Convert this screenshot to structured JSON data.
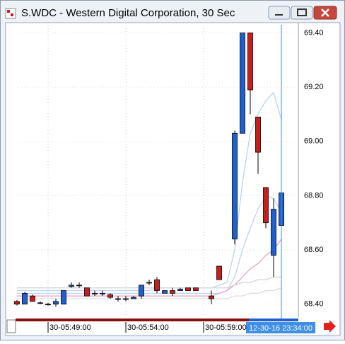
{
  "window_title": "S.WDC - Western Digital Corporation, 30 Sec",
  "chart_data": {
    "type": "candlestick",
    "categories": [
      null,
      null,
      null,
      null,
      "30-05:49:00",
      null,
      null,
      null,
      null,
      null,
      null,
      null,
      null,
      null,
      "30-05:54:00",
      null,
      null,
      null,
      null,
      null,
      null,
      null,
      null,
      null,
      "30-05:59:00",
      null,
      null,
      null,
      null,
      null,
      null,
      null,
      null,
      null,
      null
    ],
    "open": [
      68.41,
      68.4,
      68.43,
      68.405,
      68.4,
      68.4,
      68.4,
      68.465,
      68.47,
      68.46,
      68.44,
      68.44,
      68.435,
      68.42,
      68.42,
      68.42,
      68.43,
      68.48,
      68.49,
      68.44,
      68.45,
      68.45,
      68.46,
      68.46,
      null,
      68.43,
      68.54,
      null,
      68.64,
      69.03,
      69.4,
      69.09,
      68.83,
      68.58,
      68.69
    ],
    "high": [
      68.415,
      68.445,
      68.435,
      68.41,
      68.405,
      68.42,
      68.45,
      68.48,
      68.48,
      68.46,
      68.45,
      68.45,
      68.44,
      68.43,
      68.43,
      68.43,
      68.47,
      68.49,
      68.5,
      68.45,
      68.46,
      68.46,
      68.46,
      68.46,
      null,
      68.45,
      68.54,
      null,
      69.04,
      69.4,
      69.4,
      69.09,
      68.83,
      68.79,
      69.08
    ],
    "low": [
      68.395,
      68.4,
      68.41,
      68.4,
      68.395,
      68.39,
      68.4,
      68.46,
      68.46,
      68.43,
      68.43,
      68.43,
      68.42,
      68.41,
      68.41,
      68.42,
      68.42,
      68.47,
      68.44,
      68.44,
      68.43,
      68.45,
      68.45,
      68.45,
      null,
      68.4,
      68.49,
      null,
      68.62,
      69.03,
      69.1,
      68.88,
      68.68,
      68.5,
      68.49
    ],
    "close": [
      68.4,
      68.44,
      68.41,
      68.405,
      68.4,
      68.41,
      68.45,
      68.47,
      68.47,
      68.43,
      68.44,
      68.44,
      68.425,
      68.42,
      68.42,
      68.425,
      68.47,
      68.48,
      68.45,
      68.45,
      68.44,
      68.455,
      68.45,
      68.45,
      null,
      68.42,
      68.49,
      null,
      69.03,
      69.4,
      69.19,
      68.96,
      68.7,
      68.75,
      68.81
    ],
    "up_color": "#1f5fcf",
    "down_color": "#c81e1e",
    "series": [
      {
        "color": "#b8d4ee",
        "values": [
          68.45,
          68.45,
          68.45,
          68.45,
          68.45,
          68.45,
          68.45,
          68.45,
          68.45,
          68.45,
          68.45,
          68.45,
          68.45,
          68.45,
          68.45,
          68.45,
          68.45,
          68.45,
          68.46,
          68.46,
          68.46,
          68.46,
          68.46,
          68.46,
          68.46,
          68.46,
          68.47,
          68.48,
          68.6,
          68.85,
          69.03,
          69.1,
          69.15,
          69.18,
          69.08
        ]
      },
      {
        "color": "#b8d4ee",
        "values": [
          68.44,
          68.44,
          68.44,
          68.44,
          68.44,
          68.44,
          68.44,
          68.44,
          68.44,
          68.44,
          68.44,
          68.44,
          68.44,
          68.44,
          68.44,
          68.44,
          68.44,
          68.44,
          68.44,
          68.44,
          68.44,
          68.44,
          68.44,
          68.44,
          68.44,
          68.44,
          68.44,
          68.45,
          68.5,
          68.6,
          68.68,
          68.75,
          68.8,
          68.79,
          68.74
        ]
      },
      {
        "color": "#e6a3c4",
        "values": [
          68.43,
          68.43,
          68.43,
          68.43,
          68.43,
          68.43,
          68.43,
          68.43,
          68.43,
          68.43,
          68.43,
          68.43,
          68.43,
          68.43,
          68.43,
          68.43,
          68.43,
          68.43,
          68.43,
          68.43,
          68.43,
          68.43,
          68.43,
          68.43,
          68.43,
          68.43,
          68.44,
          68.45,
          68.47,
          68.5,
          68.53,
          68.55,
          68.58,
          68.6,
          68.64
        ]
      },
      {
        "color": "#d4d4d4",
        "values": [
          68.46,
          68.46,
          68.46,
          68.46,
          68.46,
          68.46,
          68.46,
          68.46,
          68.46,
          68.46,
          68.46,
          68.46,
          68.46,
          68.46,
          68.46,
          68.46,
          68.46,
          68.46,
          68.46,
          68.46,
          68.46,
          68.46,
          68.46,
          68.46,
          68.46,
          68.46,
          68.46,
          68.46,
          68.47,
          68.48,
          68.48,
          68.49,
          68.49,
          68.5,
          68.5
        ]
      },
      {
        "color": "#dcdcdc",
        "values": [
          68.42,
          68.42,
          68.42,
          68.42,
          68.42,
          68.42,
          68.42,
          68.42,
          68.42,
          68.42,
          68.42,
          68.42,
          68.42,
          68.42,
          68.42,
          68.42,
          68.42,
          68.42,
          68.42,
          68.42,
          68.42,
          68.42,
          68.42,
          68.42,
          68.42,
          68.42,
          68.42,
          68.42,
          68.43,
          68.43,
          68.44,
          68.44,
          68.45,
          68.45,
          68.46
        ]
      }
    ],
    "ylim": [
      68.36,
      69.43
    ],
    "yticks": [
      {
        "value": 68.4,
        "label": "68.40"
      },
      {
        "value": 68.6,
        "label": "68.60"
      },
      {
        "value": 68.8,
        "label": "68.80"
      },
      {
        "value": 69.0,
        "label": "69.00"
      },
      {
        "value": 69.2,
        "label": "69.20"
      },
      {
        "value": 69.4,
        "label": "69.40"
      }
    ],
    "grid": true,
    "cursor_label": "12-30-16 23:34:00"
  }
}
